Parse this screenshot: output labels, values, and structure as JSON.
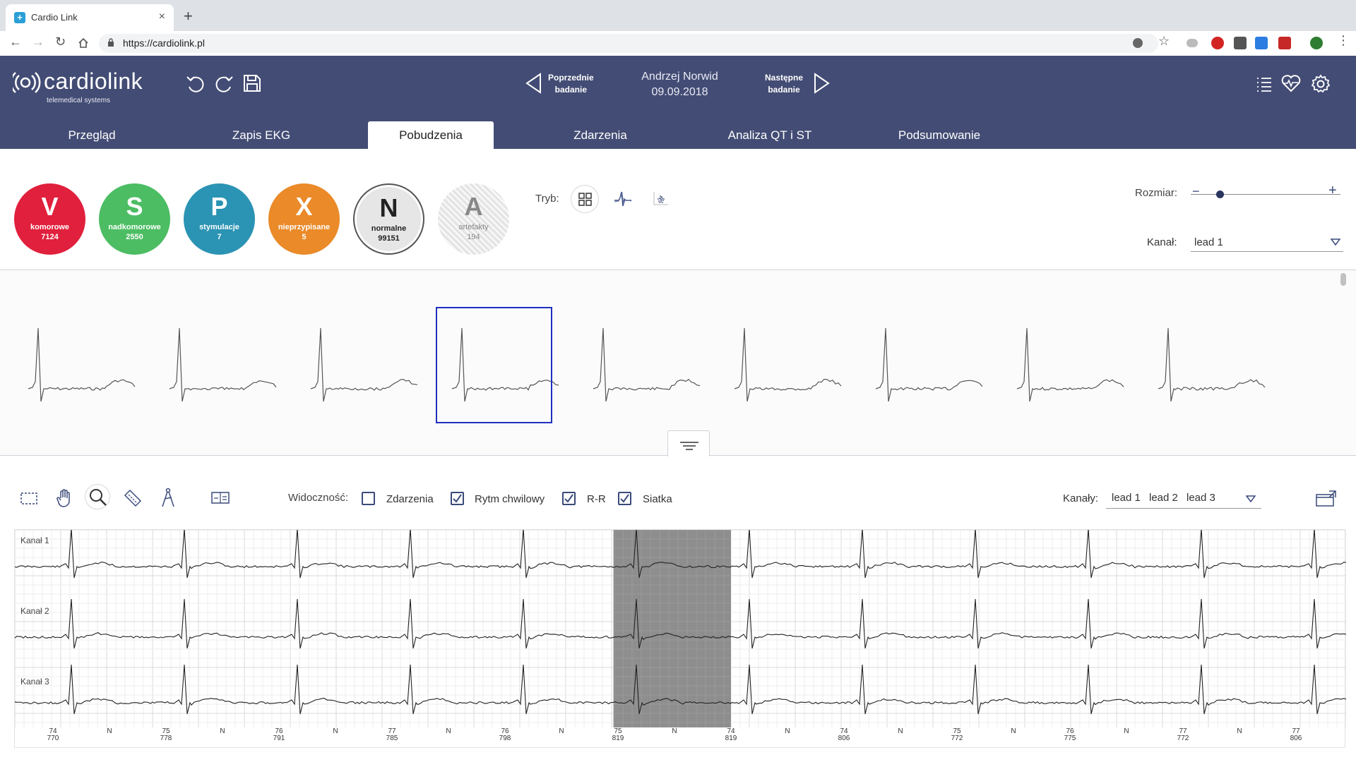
{
  "browser": {
    "tab_title": "Cardio Link",
    "tab_close": "×",
    "new_tab": "+",
    "url": "https://cardiolink.pl"
  },
  "app": {
    "brand": "cardiolink",
    "brand_sub": "telemedical systems",
    "prev": {
      "line1": "Poprzednie",
      "line2": "badanie"
    },
    "next": {
      "line1": "Następne",
      "line2": "badanie"
    },
    "patient": {
      "name": "Andrzej Norwid",
      "date": "09.09.2018"
    },
    "tabs": [
      "Przegląd",
      "Zapis EKG",
      "Pobudzenia",
      "Zdarzenia",
      "Analiza QT i ST",
      "Podsumowanie"
    ],
    "active_tab": "Pobudzenia",
    "accent_color": "#434c74"
  },
  "classes": [
    {
      "letter": "V",
      "name": "komorowe",
      "count": "7124",
      "color": "#e0203c"
    },
    {
      "letter": "S",
      "name": "nadkomorowe",
      "count": "2550",
      "color": "#4cbd63"
    },
    {
      "letter": "P",
      "name": "stymulacje",
      "count": "7",
      "color": "#2b93b3"
    },
    {
      "letter": "X",
      "name": "nieprzypisane",
      "count": "5",
      "color": "#ea8a29"
    },
    {
      "letter": "N",
      "name": "normalne",
      "count": "99151",
      "color": "#e6e6e6"
    },
    {
      "letter": "A",
      "name": "artefakty",
      "count": "194",
      "color": "#f2f2f2"
    }
  ],
  "mode": {
    "label": "Tryb:",
    "icons": [
      "grid-icon",
      "overlay-icon",
      "scatter-icon"
    ]
  },
  "size": {
    "label": "Rozmiar:",
    "minus": "−",
    "plus": "+",
    "level": 0.12
  },
  "channel": {
    "label": "Kanał:",
    "value": "lead 1"
  },
  "beats": {
    "count": 9,
    "selected_index": 3
  },
  "toolbar": {
    "tools": [
      "select-icon",
      "hand-icon",
      "zoom-icon",
      "ruler-icon",
      "caliper-icon",
      "compare-icon"
    ],
    "visibility_label": "Widoczność:",
    "checks": [
      {
        "label": "Zdarzenia",
        "checked": false
      },
      {
        "label": "Rytm chwilowy",
        "checked": true
      },
      {
        "label": "R-R",
        "checked": true
      },
      {
        "label": "Siatka",
        "checked": true
      }
    ],
    "channels_label": "Kanały:",
    "channels": [
      "lead 1",
      "lead 2",
      "lead 3"
    ]
  },
  "strip": {
    "channel_labels": [
      "Kanał 1",
      "Kanał 2",
      "Kanał 3"
    ],
    "annotations": [
      {
        "top": "74",
        "bottom": "770"
      },
      {
        "top": "N",
        "bottom": ""
      },
      {
        "top": "75",
        "bottom": "778"
      },
      {
        "top": "N",
        "bottom": ""
      },
      {
        "top": "76",
        "bottom": "791"
      },
      {
        "top": "N",
        "bottom": ""
      },
      {
        "top": "77",
        "bottom": "785"
      },
      {
        "top": "N",
        "bottom": ""
      },
      {
        "top": "76",
        "bottom": "798"
      },
      {
        "top": "N",
        "bottom": ""
      },
      {
        "top": "75",
        "bottom": "819"
      },
      {
        "top": "N",
        "bottom": ""
      },
      {
        "top": "74",
        "bottom": "819"
      },
      {
        "top": "N",
        "bottom": ""
      },
      {
        "top": "74",
        "bottom": "806"
      },
      {
        "top": "N",
        "bottom": ""
      },
      {
        "top": "75",
        "bottom": "772"
      },
      {
        "top": "N",
        "bottom": ""
      },
      {
        "top": "76",
        "bottom": "775"
      },
      {
        "top": "N",
        "bottom": ""
      },
      {
        "top": "77",
        "bottom": "772"
      },
      {
        "top": "N",
        "bottom": ""
      },
      {
        "top": "77",
        "bottom": "806"
      }
    ]
  }
}
